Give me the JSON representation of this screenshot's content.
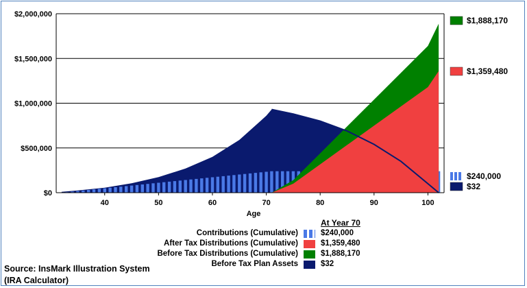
{
  "chart_data": {
    "type": "area",
    "xlabel": "Age",
    "x_ticks": [
      40,
      50,
      60,
      70,
      80,
      90,
      100
    ],
    "xlim": [
      31,
      103
    ],
    "y_ticks": [
      "$0",
      "$500,000",
      "$1,000,000",
      "$1,500,000",
      "$2,000,000"
    ],
    "ylim": [
      0,
      2000000
    ],
    "grid": "horizontal",
    "series": [
      {
        "name": "Before Tax Plan Assets",
        "color": "#0a1a6e",
        "x": [
          32,
          35,
          40,
          45,
          50,
          55,
          60,
          65,
          70,
          71,
          75,
          80,
          85,
          90,
          95,
          100,
          102
        ],
        "values": [
          10000,
          25000,
          55000,
          105000,
          175000,
          270000,
          400000,
          590000,
          860000,
          930000,
          880000,
          800000,
          690000,
          540000,
          350000,
          100000,
          32
        ]
      },
      {
        "name": "Contributions (Cumulative)",
        "color": "#4a79e6",
        "x": [
          32,
          71,
          102
        ],
        "values": [
          0,
          240000,
          240000
        ]
      },
      {
        "name": "Before Tax Distributions (Cumulative)",
        "color": "#008000",
        "x": [
          71,
          75,
          80,
          85,
          90,
          95,
          100,
          102
        ],
        "values": [
          0,
          140000,
          440000,
          740000,
          1040000,
          1340000,
          1640000,
          1888170
        ]
      },
      {
        "name": "After Tax Distributions (Cumulative)",
        "color": "#f04040",
        "x": [
          71,
          75,
          80,
          85,
          90,
          95,
          100,
          102
        ],
        "values": [
          0,
          100000,
          317000,
          533000,
          749000,
          965000,
          1180000,
          1359480
        ]
      }
    ],
    "right_labels": [
      {
        "label": "$1,888,170",
        "color": "#008000",
        "value": 1888170
      },
      {
        "label": "$1,359,480",
        "color": "#f04040",
        "value": 1359480
      },
      {
        "label": "$240,000",
        "color": "#4a79e6",
        "value": 240000,
        "pattern": "bars"
      },
      {
        "label": "$32",
        "color": "#0a1a6e",
        "value": 32
      }
    ],
    "legend": {
      "header": "At Year 70",
      "rows": [
        {
          "label": "Contributions (Cumulative)",
          "value": "$240,000",
          "color": "#4a79e6",
          "pattern": "bars"
        },
        {
          "label": "After Tax Distributions (Cumulative)",
          "value": "$1,359,480",
          "color": "#f04040"
        },
        {
          "label": "Before Tax Distributions (Cumulative)",
          "value": "$1,888,170",
          "color": "#008000"
        },
        {
          "label": "Before Tax Plan Assets",
          "value": "$32",
          "color": "#0a1a6e"
        }
      ]
    }
  },
  "source": {
    "line1": "Source: InsMark Illustration System",
    "line2": "(IRA Calculator)"
  }
}
